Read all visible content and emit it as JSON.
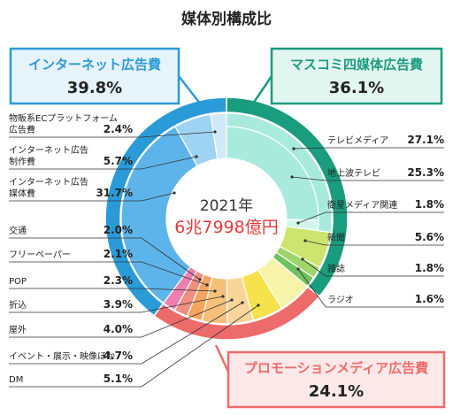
{
  "chart_data": {
    "type": "pie",
    "title": "媒体別構成比",
    "center_year": "2021年",
    "center_total": "6兆7998億円",
    "colors": {
      "internet": "#2b9bd8",
      "mass": "#1a9c7e",
      "promo": "#ee6b6b"
    },
    "categories": [
      {
        "name": "インターネット広告費",
        "value": 39.8,
        "value_label": "39.8%"
      },
      {
        "name": "マスコミ四媒体広告費",
        "value": 36.1,
        "value_label": "36.1%"
      },
      {
        "name": "プロモーションメディア広告費",
        "value": 24.1,
        "value_label": "24.1%"
      }
    ],
    "segments": [
      {
        "name": "テレビメディア",
        "value": 27.1,
        "value_label": "27.1%",
        "group": "mass",
        "color": "#a8eadb",
        "sub": [
          {
            "name": "地上波テレビ",
            "value": 25.3,
            "value_label": "25.3%",
            "color": "#a8eadb"
          },
          {
            "name": "衛星メディア関連",
            "value": 1.8,
            "value_label": "1.8%",
            "color": "#d3f5ec"
          }
        ]
      },
      {
        "name": "新聞",
        "value": 5.6,
        "value_label": "5.6%",
        "group": "mass",
        "color": "#cde46e"
      },
      {
        "name": "雑誌",
        "value": 1.8,
        "value_label": "1.8%",
        "group": "mass",
        "color": "#9fd46a"
      },
      {
        "name": "ラジオ",
        "value": 1.6,
        "value_label": "1.6%",
        "group": "mass",
        "color": "#6fc25e"
      },
      {
        "name": "DM",
        "value": 5.1,
        "value_label": "5.1%",
        "group": "promo",
        "color": "#f7f3a8"
      },
      {
        "name": "イベント・展示・映像ほか",
        "value": 4.7,
        "value_label": "4.7%",
        "group": "promo",
        "color": "#f6e24a"
      },
      {
        "name": "屋外",
        "value": 4.0,
        "value_label": "4.0%",
        "group": "promo",
        "color": "#f9d59a"
      },
      {
        "name": "折込",
        "value": 3.9,
        "value_label": "3.9%",
        "group": "promo",
        "color": "#f5c07a"
      },
      {
        "name": "POP",
        "value": 2.3,
        "value_label": "2.3%",
        "group": "promo",
        "color": "#f3a55e"
      },
      {
        "name": "フリーペーパー",
        "value": 2.1,
        "value_label": "2.1%",
        "group": "promo",
        "color": "#f08e7f"
      },
      {
        "name": "交通",
        "value": 2.0,
        "value_label": "2.0%",
        "group": "promo",
        "color": "#ee7fb0"
      },
      {
        "name": "インターネット広告媒体費",
        "value": 31.7,
        "value_label": "31.7%",
        "group": "internet",
        "color": "#5cb4ea"
      },
      {
        "name": "インターネット広告制作費",
        "value": 5.7,
        "value_label": "5.7%",
        "group": "internet",
        "color": "#9fd3f3"
      },
      {
        "name": "物販系ECプラットフォーム広告費",
        "value": 2.4,
        "value_label": "2.4%",
        "group": "internet",
        "color": "#cfe9f9"
      }
    ],
    "left_labels": [
      {
        "lines": [
          "物販系ECプラットフォーム",
          "広告費"
        ],
        "value_label": "2.4%"
      },
      {
        "lines": [
          "インターネット広告",
          "制作費"
        ],
        "value_label": "5.7%"
      },
      {
        "lines": [
          "インターネット広告",
          "媒体費"
        ],
        "value_label": "31.7%"
      },
      {
        "lines": [
          "交通"
        ],
        "value_label": "2.0%"
      },
      {
        "lines": [
          "フリーペーパー"
        ],
        "value_label": "2.1%"
      },
      {
        "lines": [
          "POP"
        ],
        "value_label": "2.3%"
      },
      {
        "lines": [
          "折込"
        ],
        "value_label": "3.9%"
      },
      {
        "lines": [
          "屋外"
        ],
        "value_label": "4.0%"
      },
      {
        "lines": [
          "イベント・展示・映像ほか"
        ],
        "value_label": "4.7%"
      },
      {
        "lines": [
          "DM"
        ],
        "value_label": "5.1%"
      }
    ],
    "right_labels": [
      {
        "lines": [
          "テレビメディア"
        ],
        "value_label": "27.1%"
      },
      {
        "lines": [
          "地上波テレビ"
        ],
        "value_label": "25.3%"
      },
      {
        "lines": [
          "衛星メディア関連"
        ],
        "value_label": "1.8%"
      },
      {
        "lines": [
          "新聞"
        ],
        "value_label": "5.6%"
      },
      {
        "lines": [
          "雑誌"
        ],
        "value_label": "1.8%"
      },
      {
        "lines": [
          "ラジオ"
        ],
        "value_label": "1.6%"
      }
    ]
  }
}
